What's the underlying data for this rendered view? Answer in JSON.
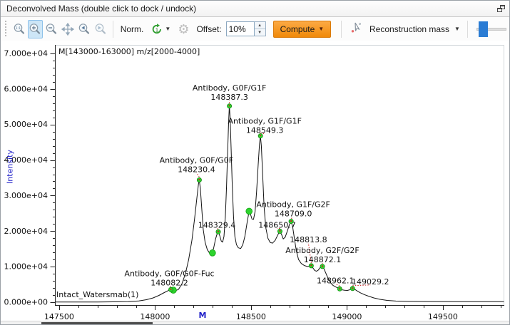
{
  "window": {
    "title": "Deconvolved Mass (double click to dock / undock)"
  },
  "toolbar": {
    "norm_label": "Norm.",
    "offset_label": "Offset:",
    "offset_value": "10%",
    "compute_label": "Compute",
    "mode_selector": "Reconstruction mass",
    "active_tool": "zoom-in"
  },
  "icons": {
    "zoom-fit": "magnifier 1:1",
    "zoom-in": "magnifier +",
    "zoom-out": "magnifier −",
    "pan": "four-way arrows",
    "zoom-previous": "magnifier ◀",
    "zoom-next": "magnifier ▶",
    "normalize-cycle": "green circular arrow with 1",
    "settings": "gear ⚙",
    "compute-menu": "▼",
    "annotate-pointer": "cursor with red dot",
    "mode-menu": "▼",
    "dock": "overlapping squares"
  },
  "colors": {
    "accent_orange": "#F28411",
    "marker_green": "#2ED32E",
    "marker_center_red": "#CC2222",
    "leader_red": "#CC2222",
    "axis_label_blue": "#2020C8",
    "slider_blue": "#2A7CD4",
    "active_tool_bg": "#CDE6F7",
    "curve_black": "#111111"
  },
  "chart_data": {
    "type": "line",
    "range_annotation": "M[143000-163000] m/z[2000-4000]",
    "trace_label": "Intact_Watersmab(1)",
    "xlabel": "M",
    "ylabel": "Intensity",
    "xlim": [
      147478,
      149820
    ],
    "ylim": [
      0,
      70000
    ],
    "x_major_ticks": [
      147500,
      148000,
      148500,
      149000,
      149500
    ],
    "x_minor_step": 100,
    "y_major_ticks": [
      {
        "value": 0,
        "label": "0.000e+00"
      },
      {
        "value": 10000,
        "label": "1.000e+04"
      },
      {
        "value": 20000,
        "label": "2.000e+04"
      },
      {
        "value": 30000,
        "label": "3.000e+04"
      },
      {
        "value": 40000,
        "label": "4.000e+04"
      },
      {
        "value": 50000,
        "label": "5.000e+04"
      },
      {
        "value": 60000,
        "label": "6.000e+04"
      },
      {
        "value": 70000,
        "label": "7.000e+04"
      }
    ],
    "y_minor_step": 2000,
    "peaks": [
      {
        "name": "Antibody, G0F/G0F-Fuc",
        "label": "148082.2",
        "mass": 148082.2,
        "intensity": 3550,
        "dx": -2,
        "dy": -10
      },
      {
        "name": "Antibody, G0F/G0F",
        "label": "148230.4",
        "mass": 148230.4,
        "intensity": 34400,
        "dx": -4,
        "dy": -15
      },
      {
        "name": null,
        "label": "148329.4",
        "mass": 148329.4,
        "intensity": 19800,
        "dx": -2,
        "dy": -10
      },
      {
        "name": "Antibody, G0F/G1F",
        "label": "148387.3",
        "mass": 148387.3,
        "intensity": 55200,
        "dx": 0,
        "dy": -13
      },
      {
        "name": "Antibody, G1F/G1F",
        "label": "148549.3",
        "mass": 148549.3,
        "intensity": 46800,
        "dx": 6,
        "dy": -8
      },
      {
        "name": null,
        "label": "148650.7",
        "mass": 148650.7,
        "intensity": 19950,
        "dx": -4,
        "dy": -9
      },
      {
        "name": "Antibody, G1F/G2F",
        "label": "148709.0",
        "mass": 148709.0,
        "intensity": 22750,
        "dx": 3,
        "dy": -11
      },
      {
        "name": null,
        "label": "148813.8",
        "mass": 148813.8,
        "intensity": 10250,
        "dx": -4,
        "dy": -37
      },
      {
        "name": "Antibody, G2F/G2F",
        "label": "148872.1",
        "mass": 148872.1,
        "intensity": 10050,
        "dx": 0,
        "dy": -10
      },
      {
        "name": null,
        "label": "148962.1",
        "mass": 148962.1,
        "intensity": 3750,
        "dx": -6,
        "dy": -12
      },
      {
        "name": null,
        "label": "149029.2",
        "mass": 149029.2,
        "intensity": 3850,
        "dx": 25,
        "dy": -10
      }
    ],
    "extra_markers": [
      {
        "mass": 148095,
        "intensity": 3400
      },
      {
        "mass": 148299,
        "intensity": 13870
      },
      {
        "mass": 148490,
        "intensity": 25600
      }
    ],
    "curve": [
      [
        147480,
        60
      ],
      [
        147700,
        60
      ],
      [
        147860,
        150
      ],
      [
        147915,
        350
      ],
      [
        147955,
        700
      ],
      [
        147990,
        1200
      ],
      [
        148020,
        1900
      ],
      [
        148048,
        2700
      ],
      [
        148068,
        3250
      ],
      [
        148082,
        3550
      ],
      [
        148093,
        3400
      ],
      [
        148105,
        3200
      ],
      [
        148122,
        3600
      ],
      [
        148140,
        5200
      ],
      [
        148158,
        8000
      ],
      [
        148175,
        12000
      ],
      [
        148192,
        17500
      ],
      [
        148206,
        23500
      ],
      [
        148218,
        29500
      ],
      [
        148226,
        33200
      ],
      [
        148230,
        34400
      ],
      [
        148236,
        32000
      ],
      [
        148243,
        26500
      ],
      [
        148251,
        20500
      ],
      [
        148261,
        16800
      ],
      [
        148272,
        14800
      ],
      [
        148284,
        13800
      ],
      [
        148296,
        13850
      ],
      [
        148305,
        15200
      ],
      [
        148315,
        17800
      ],
      [
        148324,
        19400
      ],
      [
        148330,
        19800
      ],
      [
        148337,
        18700
      ],
      [
        148345,
        17200
      ],
      [
        148352,
        16900
      ],
      [
        148359,
        18500
      ],
      [
        148366,
        24000
      ],
      [
        148372,
        32000
      ],
      [
        148378,
        42000
      ],
      [
        148383,
        50000
      ],
      [
        148387,
        55200
      ],
      [
        148391,
        52000
      ],
      [
        148396,
        44000
      ],
      [
        148402,
        33000
      ],
      [
        148409,
        24000
      ],
      [
        148416,
        18500
      ],
      [
        148424,
        16200
      ],
      [
        148434,
        15300
      ],
      [
        148446,
        15100
      ],
      [
        148457,
        16200
      ],
      [
        148468,
        18500
      ],
      [
        148480,
        22500
      ],
      [
        148490,
        25600
      ],
      [
        148497,
        24800
      ],
      [
        148505,
        23400
      ],
      [
        148513,
        23300
      ],
      [
        148521,
        25500
      ],
      [
        148529,
        31000
      ],
      [
        148537,
        38500
      ],
      [
        148544,
        44500
      ],
      [
        148549,
        46800
      ],
      [
        148554,
        44000
      ],
      [
        148560,
        36500
      ],
      [
        148568,
        27000
      ],
      [
        148577,
        21000
      ],
      [
        148588,
        18000
      ],
      [
        148600,
        16800
      ],
      [
        148612,
        16600
      ],
      [
        148626,
        17400
      ],
      [
        148640,
        19000
      ],
      [
        148650,
        19950
      ],
      [
        148659,
        19100
      ],
      [
        148668,
        17800
      ],
      [
        148678,
        18300
      ],
      [
        148689,
        20000
      ],
      [
        148700,
        21800
      ],
      [
        148709,
        22750
      ],
      [
        148717,
        21200
      ],
      [
        148726,
        18000
      ],
      [
        148736,
        14500
      ],
      [
        148748,
        12000
      ],
      [
        148762,
        10900
      ],
      [
        148778,
        10300
      ],
      [
        148794,
        10050
      ],
      [
        148808,
        10150
      ],
      [
        148814,
        10250
      ],
      [
        148822,
        9700
      ],
      [
        148832,
        8950
      ],
      [
        148841,
        8700
      ],
      [
        148850,
        9000
      ],
      [
        148860,
        9700
      ],
      [
        148868,
        10000
      ],
      [
        148872,
        10050
      ],
      [
        148879,
        9550
      ],
      [
        148888,
        8400
      ],
      [
        148900,
        6900
      ],
      [
        148914,
        5500
      ],
      [
        148928,
        4700
      ],
      [
        148943,
        4250
      ],
      [
        148956,
        3950
      ],
      [
        148962,
        3750
      ],
      [
        148974,
        3500
      ],
      [
        148988,
        3350
      ],
      [
        149002,
        3300
      ],
      [
        149014,
        3500
      ],
      [
        149025,
        3800
      ],
      [
        149029,
        3850
      ],
      [
        149040,
        3650
      ],
      [
        149054,
        3150
      ],
      [
        149070,
        2650
      ],
      [
        149090,
        2150
      ],
      [
        149112,
        1700
      ],
      [
        149140,
        1200
      ],
      [
        149172,
        800
      ],
      [
        149210,
        500
      ],
      [
        149255,
        320
      ],
      [
        149320,
        220
      ],
      [
        149420,
        180
      ],
      [
        149560,
        160
      ],
      [
        149700,
        150
      ],
      [
        149818,
        150
      ]
    ]
  }
}
